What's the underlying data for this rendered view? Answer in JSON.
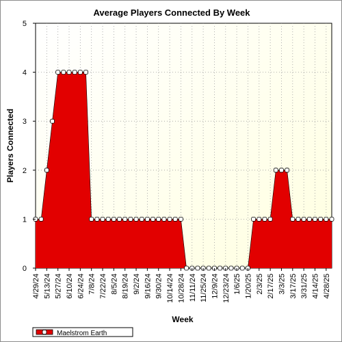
{
  "chart_data": {
    "type": "area",
    "title": "Average Players Connected By Week",
    "xlabel": "Week",
    "ylabel": "Players Connected",
    "ylim": [
      0,
      5
    ],
    "y_ticks": [
      0,
      1,
      2,
      3,
      4,
      5
    ],
    "grid": true,
    "legend_position": "bottom-left",
    "x_tick_labels": [
      "4/29/24",
      "5/13/24",
      "5/27/24",
      "6/10/24",
      "6/24/24",
      "7/8/24",
      "7/22/24",
      "8/5/24",
      "8/19/24",
      "9/2/24",
      "9/16/24",
      "9/30/24",
      "10/14/24",
      "10/28/24",
      "11/11/24",
      "11/25/24",
      "12/9/24",
      "12/23/24",
      "1/6/25",
      "1/20/25",
      "2/3/25",
      "2/17/25",
      "3/3/25",
      "3/17/25",
      "3/31/25",
      "4/14/25",
      "4/28/25"
    ],
    "x": [
      "4/29/24",
      "5/6/24",
      "5/13/24",
      "5/20/24",
      "5/27/24",
      "6/3/24",
      "6/10/24",
      "6/17/24",
      "6/24/24",
      "7/1/24",
      "7/8/24",
      "7/15/24",
      "7/22/24",
      "7/29/24",
      "8/5/24",
      "8/12/24",
      "8/19/24",
      "8/26/24",
      "9/2/24",
      "9/9/24",
      "9/16/24",
      "9/23/24",
      "9/30/24",
      "10/7/24",
      "10/14/24",
      "10/21/24",
      "10/28/24",
      "11/4/24",
      "11/11/24",
      "11/18/24",
      "11/25/24",
      "12/2/24",
      "12/9/24",
      "12/16/24",
      "12/23/24",
      "12/30/24",
      "1/6/25",
      "1/13/25",
      "1/20/25",
      "1/27/25",
      "2/3/25",
      "2/10/25",
      "2/17/25",
      "2/24/25",
      "3/3/25",
      "3/10/25",
      "3/17/25",
      "3/24/25",
      "3/31/25",
      "4/7/25",
      "4/14/25",
      "4/21/25",
      "4/28/25",
      "5/5/25"
    ],
    "series": [
      {
        "name": "Maelstrom Earth",
        "color": "#ff0000",
        "values": [
          1,
          1,
          2,
          3,
          4,
          4,
          4,
          4,
          4,
          4,
          1,
          1,
          1,
          1,
          1,
          1,
          1,
          1,
          1,
          1,
          1,
          1,
          1,
          1,
          1,
          1,
          1,
          0,
          0,
          0,
          0,
          0,
          0,
          0,
          0,
          0,
          0,
          0,
          0,
          1,
          1,
          1,
          1,
          2,
          2,
          2,
          1,
          1,
          1,
          1,
          1,
          1,
          1,
          1
        ]
      }
    ],
    "colors": {
      "plot_background_top_left": "#ffffff",
      "plot_background_bottom_right": "#ffffe0",
      "area_fill": "#e20000",
      "line": "#000000",
      "marker_fill": "#ffffff"
    }
  }
}
